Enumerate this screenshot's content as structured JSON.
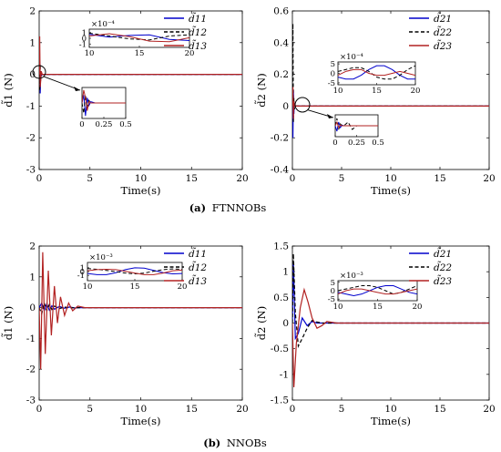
{
  "captions": {
    "a": {
      "label": "(a)",
      "text": "FTNNOBs"
    },
    "b": {
      "label": "(b)",
      "text": "NNOBs"
    }
  },
  "chart_data": [
    {
      "id": "ftnnob-d1",
      "type": "line",
      "xlabel": "Time(s)",
      "ylabel": "d̃1 (N)",
      "xlim": [
        0,
        20
      ],
      "ylim": [
        -3,
        2
      ],
      "xticks": [
        0,
        5,
        10,
        15,
        20
      ],
      "yticks": [
        -3,
        -2,
        -1,
        0,
        1,
        2
      ],
      "legend": [
        "d̃11",
        "d̃12",
        "d̃13"
      ],
      "colors": [
        "#0000cc",
        "#000000",
        "#b22222"
      ],
      "series": [
        {
          "name": "d̃11",
          "x": [
            0,
            0.05,
            0.1,
            0.15,
            0.2,
            0.3,
            0.5,
            1,
            20
          ],
          "y": [
            0,
            0.4,
            -0.6,
            0.1,
            -0.05,
            0,
            0,
            0,
            0
          ]
        },
        {
          "name": "d̃12",
          "x": [
            0,
            0.05,
            0.1,
            0.15,
            0.2,
            0.3,
            0.5,
            1,
            20
          ],
          "y": [
            0,
            -0.5,
            0.3,
            -0.2,
            0.05,
            0,
            0,
            0,
            0
          ]
        },
        {
          "name": "d̃13",
          "x": [
            0,
            0.05,
            0.1,
            0.15,
            0.2,
            0.3,
            0.5,
            1,
            20
          ],
          "y": [
            0,
            1.2,
            -0.4,
            -0.2,
            0.1,
            0,
            0,
            0,
            0
          ]
        }
      ],
      "insets": [
        {
          "xlim": [
            10,
            20
          ],
          "ylim": [
            -1.6,
            1.6
          ],
          "xticks": [
            10,
            15,
            20
          ],
          "yticks": [
            -1,
            0,
            1
          ],
          "exponent": "×10⁻⁴",
          "axis_scale": 1,
          "series": [
            {
              "x": [
                10,
                12,
                14,
                16,
                18,
                20
              ],
              "y": [
                0.7,
                0.2,
                0.5,
                0.6,
                -0.2,
                -0.4
              ]
            },
            {
              "x": [
                10,
                12,
                14,
                16,
                18,
                20
              ],
              "y": [
                0.9,
                0.4,
                -0.1,
                -0.3,
                0.4,
                0.6
              ]
            },
            {
              "x": [
                10,
                12,
                14,
                16,
                18,
                20
              ],
              "y": [
                0.4,
                0.8,
                0.3,
                -0.5,
                -0.6,
                0.1
              ]
            }
          ]
        },
        {
          "xlim": [
            0,
            0.5
          ],
          "ylim": [
            -0.6,
            0.6
          ],
          "xticks": [
            0,
            0.25,
            0.5
          ],
          "yticks": [],
          "exponent": "",
          "axis_scale": 1,
          "series": [
            {
              "x": [
                0,
                0.02,
                0.04,
                0.06,
                0.08,
                0.1,
                0.15,
                0.5
              ],
              "y": [
                0,
                0.3,
                -0.5,
                0.2,
                -0.1,
                0.05,
                0,
                0
              ]
            },
            {
              "x": [
                0,
                0.02,
                0.04,
                0.06,
                0.08,
                0.1,
                0.15,
                0.5
              ],
              "y": [
                0,
                -0.4,
                0.3,
                -0.2,
                0.1,
                0,
                0,
                0
              ]
            },
            {
              "x": [
                0,
                0.02,
                0.04,
                0.06,
                0.08,
                0.1,
                0.15,
                0.5
              ],
              "y": [
                0,
                0.5,
                0.2,
                -0.3,
                0.05,
                0,
                0,
                0
              ]
            }
          ]
        }
      ]
    },
    {
      "id": "ftnnob-d2",
      "type": "line",
      "xlabel": "Time(s)",
      "ylabel": "d̃2 (N)",
      "xlim": [
        0,
        20
      ],
      "ylim": [
        -0.4,
        0.6
      ],
      "xticks": [
        0,
        5,
        10,
        15,
        20
      ],
      "yticks": [
        -0.4,
        -0.2,
        0,
        0.2,
        0.4,
        0.6
      ],
      "legend": [
        "d̃21",
        "d̃22",
        "d̃23"
      ],
      "colors": [
        "#0000cc",
        "#000000",
        "#b22222"
      ],
      "series": [
        {
          "name": "d̃21",
          "x": [
            0,
            0.05,
            0.1,
            0.15,
            0.2,
            0.3,
            0.5,
            1,
            20
          ],
          "y": [
            0,
            -0.2,
            0.1,
            -0.05,
            0.02,
            0,
            0,
            0,
            0
          ]
        },
        {
          "name": "d̃22",
          "x": [
            0,
            0.05,
            0.1,
            0.15,
            0.2,
            0.3,
            0.5,
            1,
            20
          ],
          "y": [
            0,
            0.52,
            -0.1,
            0.05,
            -0.02,
            0,
            0,
            0,
            0
          ]
        },
        {
          "name": "d̃23",
          "x": [
            0,
            0.05,
            0.1,
            0.15,
            0.2,
            0.3,
            0.5,
            1,
            20
          ],
          "y": [
            0,
            0.12,
            -0.08,
            0.03,
            0,
            0,
            0,
            0,
            0
          ]
        }
      ],
      "insets": [
        {
          "xlim": [
            10,
            20
          ],
          "ylim": [
            -6,
            6
          ],
          "xticks": [
            10,
            15,
            20
          ],
          "yticks": [
            -5,
            0,
            5
          ],
          "exponent": "×10⁻⁴",
          "axis_scale": 1,
          "series": [
            {
              "x": [
                10,
                11,
                12,
                13,
                14,
                15,
                16,
                17,
                18,
                19,
                20
              ],
              "y": [
                -2,
                -3,
                -3,
                -1,
                2,
                4,
                4,
                2,
                -1,
                -3,
                -3
              ]
            },
            {
              "x": [
                10,
                11,
                12,
                13,
                14,
                15,
                16,
                17,
                18,
                19,
                20
              ],
              "y": [
                1,
                2,
                3,
                3,
                1,
                -2,
                -3,
                -3,
                -1,
                2,
                4
              ]
            },
            {
              "x": [
                10,
                11,
                12,
                13,
                14,
                15,
                16,
                17,
                18,
                19,
                20
              ],
              "y": [
                -1,
                1,
                2,
                2,
                0,
                -1,
                -1,
                0,
                1,
                0,
                -1
              ]
            }
          ]
        },
        {
          "xlim": [
            0,
            0.5
          ],
          "ylim": [
            -0.3,
            0.3
          ],
          "xticks": [
            0,
            0.25,
            0.5
          ],
          "yticks": [],
          "exponent": "",
          "axis_scale": 1,
          "series": [
            {
              "x": [
                0,
                0.02,
                0.04,
                0.06,
                0.08,
                0.1,
                0.15,
                0.2,
                0.25,
                0.5
              ],
              "y": [
                0,
                -0.15,
                0.1,
                -0.05,
                0.02,
                0,
                0,
                0,
                0,
                0
              ]
            },
            {
              "x": [
                0,
                0.02,
                0.04,
                0.06,
                0.08,
                0.1,
                0.15,
                0.2,
                0.25,
                0.5
              ],
              "y": [
                0,
                0.2,
                -0.1,
                0.05,
                0,
                0,
                0.1,
                -0.1,
                0,
                0
              ]
            },
            {
              "x": [
                0,
                0.02,
                0.04,
                0.06,
                0.08,
                0.1,
                0.15,
                0.2,
                0.25,
                0.5
              ],
              "y": [
                0,
                0.1,
                -0.05,
                0.02,
                0,
                0,
                0,
                0,
                0,
                0
              ]
            }
          ]
        }
      ]
    },
    {
      "id": "nnob-d1",
      "type": "line",
      "xlabel": "Time(s)",
      "ylabel": "d̃1 (N)",
      "xlim": [
        0,
        20
      ],
      "ylim": [
        -3,
        2
      ],
      "xticks": [
        0,
        5,
        10,
        15,
        20
      ],
      "yticks": [
        -3,
        -2,
        -1,
        0,
        1,
        2
      ],
      "legend": [
        "d̃11",
        "d̃12",
        "d̃13"
      ],
      "colors": [
        "#0000cc",
        "#000000",
        "#b22222"
      ],
      "series": [
        {
          "name": "d̃11",
          "x": [
            0,
            0.25,
            0.5,
            0.75,
            1,
            1.25,
            1.5,
            2,
            2.5,
            3,
            3.5,
            4,
            5,
            6,
            20
          ],
          "y": [
            0,
            0.15,
            -0.1,
            0.12,
            -0.08,
            0.06,
            -0.05,
            0.04,
            -0.02,
            0.02,
            -0.01,
            0,
            0,
            0,
            0
          ]
        },
        {
          "name": "d̃12",
          "x": [
            0,
            0.25,
            0.5,
            0.75,
            1,
            1.25,
            1.5,
            2,
            2.5,
            3,
            3.5,
            4,
            5,
            6,
            20
          ],
          "y": [
            0,
            -0.2,
            0.15,
            -0.1,
            0.1,
            -0.06,
            0.05,
            -0.03,
            0.02,
            -0.01,
            0,
            0,
            0,
            0,
            0
          ]
        },
        {
          "name": "d̃13",
          "x": [
            0,
            0.15,
            0.35,
            0.6,
            0.9,
            1.2,
            1.5,
            1.8,
            2.1,
            2.5,
            2.9,
            3.3,
            3.8,
            4.5,
            5.5,
            20
          ],
          "y": [
            0,
            -2.0,
            1.8,
            -1.5,
            1.2,
            -0.9,
            0.7,
            -0.5,
            0.35,
            -0.25,
            0.15,
            -0.1,
            0.05,
            0,
            0,
            0
          ]
        }
      ],
      "insets": [
        {
          "xlim": [
            10,
            20
          ],
          "ylim": [
            -2.4,
            2.4
          ],
          "xticks": [
            10,
            15,
            20
          ],
          "yticks": [
            -1,
            0,
            1
          ],
          "exponent": "×10⁻³",
          "axis_scale": 1,
          "series": [
            {
              "x": [
                10,
                11,
                12,
                13,
                14,
                15,
                16,
                17,
                18,
                19,
                20
              ],
              "y": [
                -0.5,
                -0.8,
                -0.8,
                -0.3,
                0.5,
                1.0,
                0.9,
                0.3,
                -0.3,
                -0.6,
                -0.5
              ]
            },
            {
              "x": [
                10,
                11,
                12,
                13,
                14,
                15,
                16,
                17,
                18,
                19,
                20
              ],
              "y": [
                0.8,
                0.6,
                0.3,
                0,
                -0.4,
                -0.6,
                -0.4,
                0.1,
                0.5,
                0.7,
                0.6
              ]
            },
            {
              "x": [
                10,
                11,
                12,
                13,
                14,
                15,
                16,
                17,
                18,
                19,
                20
              ],
              "y": [
                0.2,
                0.5,
                0.6,
                0.5,
                0.1,
                -0.4,
                -0.8,
                -0.8,
                -0.4,
                0.2,
                0.4
              ]
            }
          ]
        }
      ]
    },
    {
      "id": "nnob-d2",
      "type": "line",
      "xlabel": "Time(s)",
      "ylabel": "d̃2 (N)",
      "xlim": [
        0,
        20
      ],
      "ylim": [
        -1.5,
        1.5
      ],
      "xticks": [
        0,
        5,
        10,
        15,
        20
      ],
      "yticks": [
        -1.5,
        -1,
        -0.5,
        0,
        0.5,
        1,
        1.5
      ],
      "legend": [
        "d̃21",
        "d̃22",
        "d̃23"
      ],
      "colors": [
        "#0000cc",
        "#000000",
        "#b22222"
      ],
      "series": [
        {
          "name": "d̃21",
          "x": [
            0,
            0.1,
            0.3,
            0.6,
            1,
            1.5,
            2,
            2.5,
            3,
            4,
            20
          ],
          "y": [
            0,
            1.2,
            -0.3,
            -0.2,
            0.1,
            -0.05,
            0.03,
            0,
            0,
            0,
            0
          ]
        },
        {
          "name": "d̃22",
          "x": [
            0,
            0.1,
            0.3,
            0.6,
            1,
            1.5,
            2,
            2.5,
            3,
            4,
            20
          ],
          "y": [
            0,
            1.35,
            0.2,
            -0.45,
            -0.3,
            -0.1,
            0.05,
            0.02,
            0,
            0,
            0
          ]
        },
        {
          "name": "d̃23",
          "x": [
            0,
            0.15,
            0.4,
            0.8,
            1.2,
            1.6,
            2,
            2.5,
            3,
            3.5,
            4.5,
            20
          ],
          "y": [
            0,
            -1.25,
            -0.4,
            0.3,
            0.65,
            0.4,
            0.1,
            -0.1,
            -0.05,
            0.03,
            0,
            0
          ]
        }
      ],
      "insets": [
        {
          "xlim": [
            10,
            20
          ],
          "ylim": [
            -6,
            6
          ],
          "xticks": [
            10,
            15,
            20
          ],
          "yticks": [
            -5,
            0,
            5
          ],
          "exponent": "×10⁻³",
          "axis_scale": 1,
          "series": [
            {
              "x": [
                10,
                11,
                12,
                13,
                14,
                15,
                16,
                17,
                18,
                19,
                20
              ],
              "y": [
                -1,
                -2,
                -3,
                -2,
                0,
                2,
                3,
                3,
                1,
                -1,
                -2
              ]
            },
            {
              "x": [
                10,
                11,
                12,
                13,
                14,
                15,
                16,
                17,
                18,
                19,
                20
              ],
              "y": [
                0,
                1,
                2,
                3,
                3,
                2,
                0,
                -2,
                -1,
                1,
                3
              ]
            },
            {
              "x": [
                10,
                11,
                12,
                13,
                14,
                15,
                16,
                17,
                18,
                19,
                20
              ],
              "y": [
                -2,
                0,
                1,
                1,
                0,
                -1,
                -2,
                -2,
                -1,
                0,
                1
              ]
            }
          ]
        }
      ]
    }
  ]
}
